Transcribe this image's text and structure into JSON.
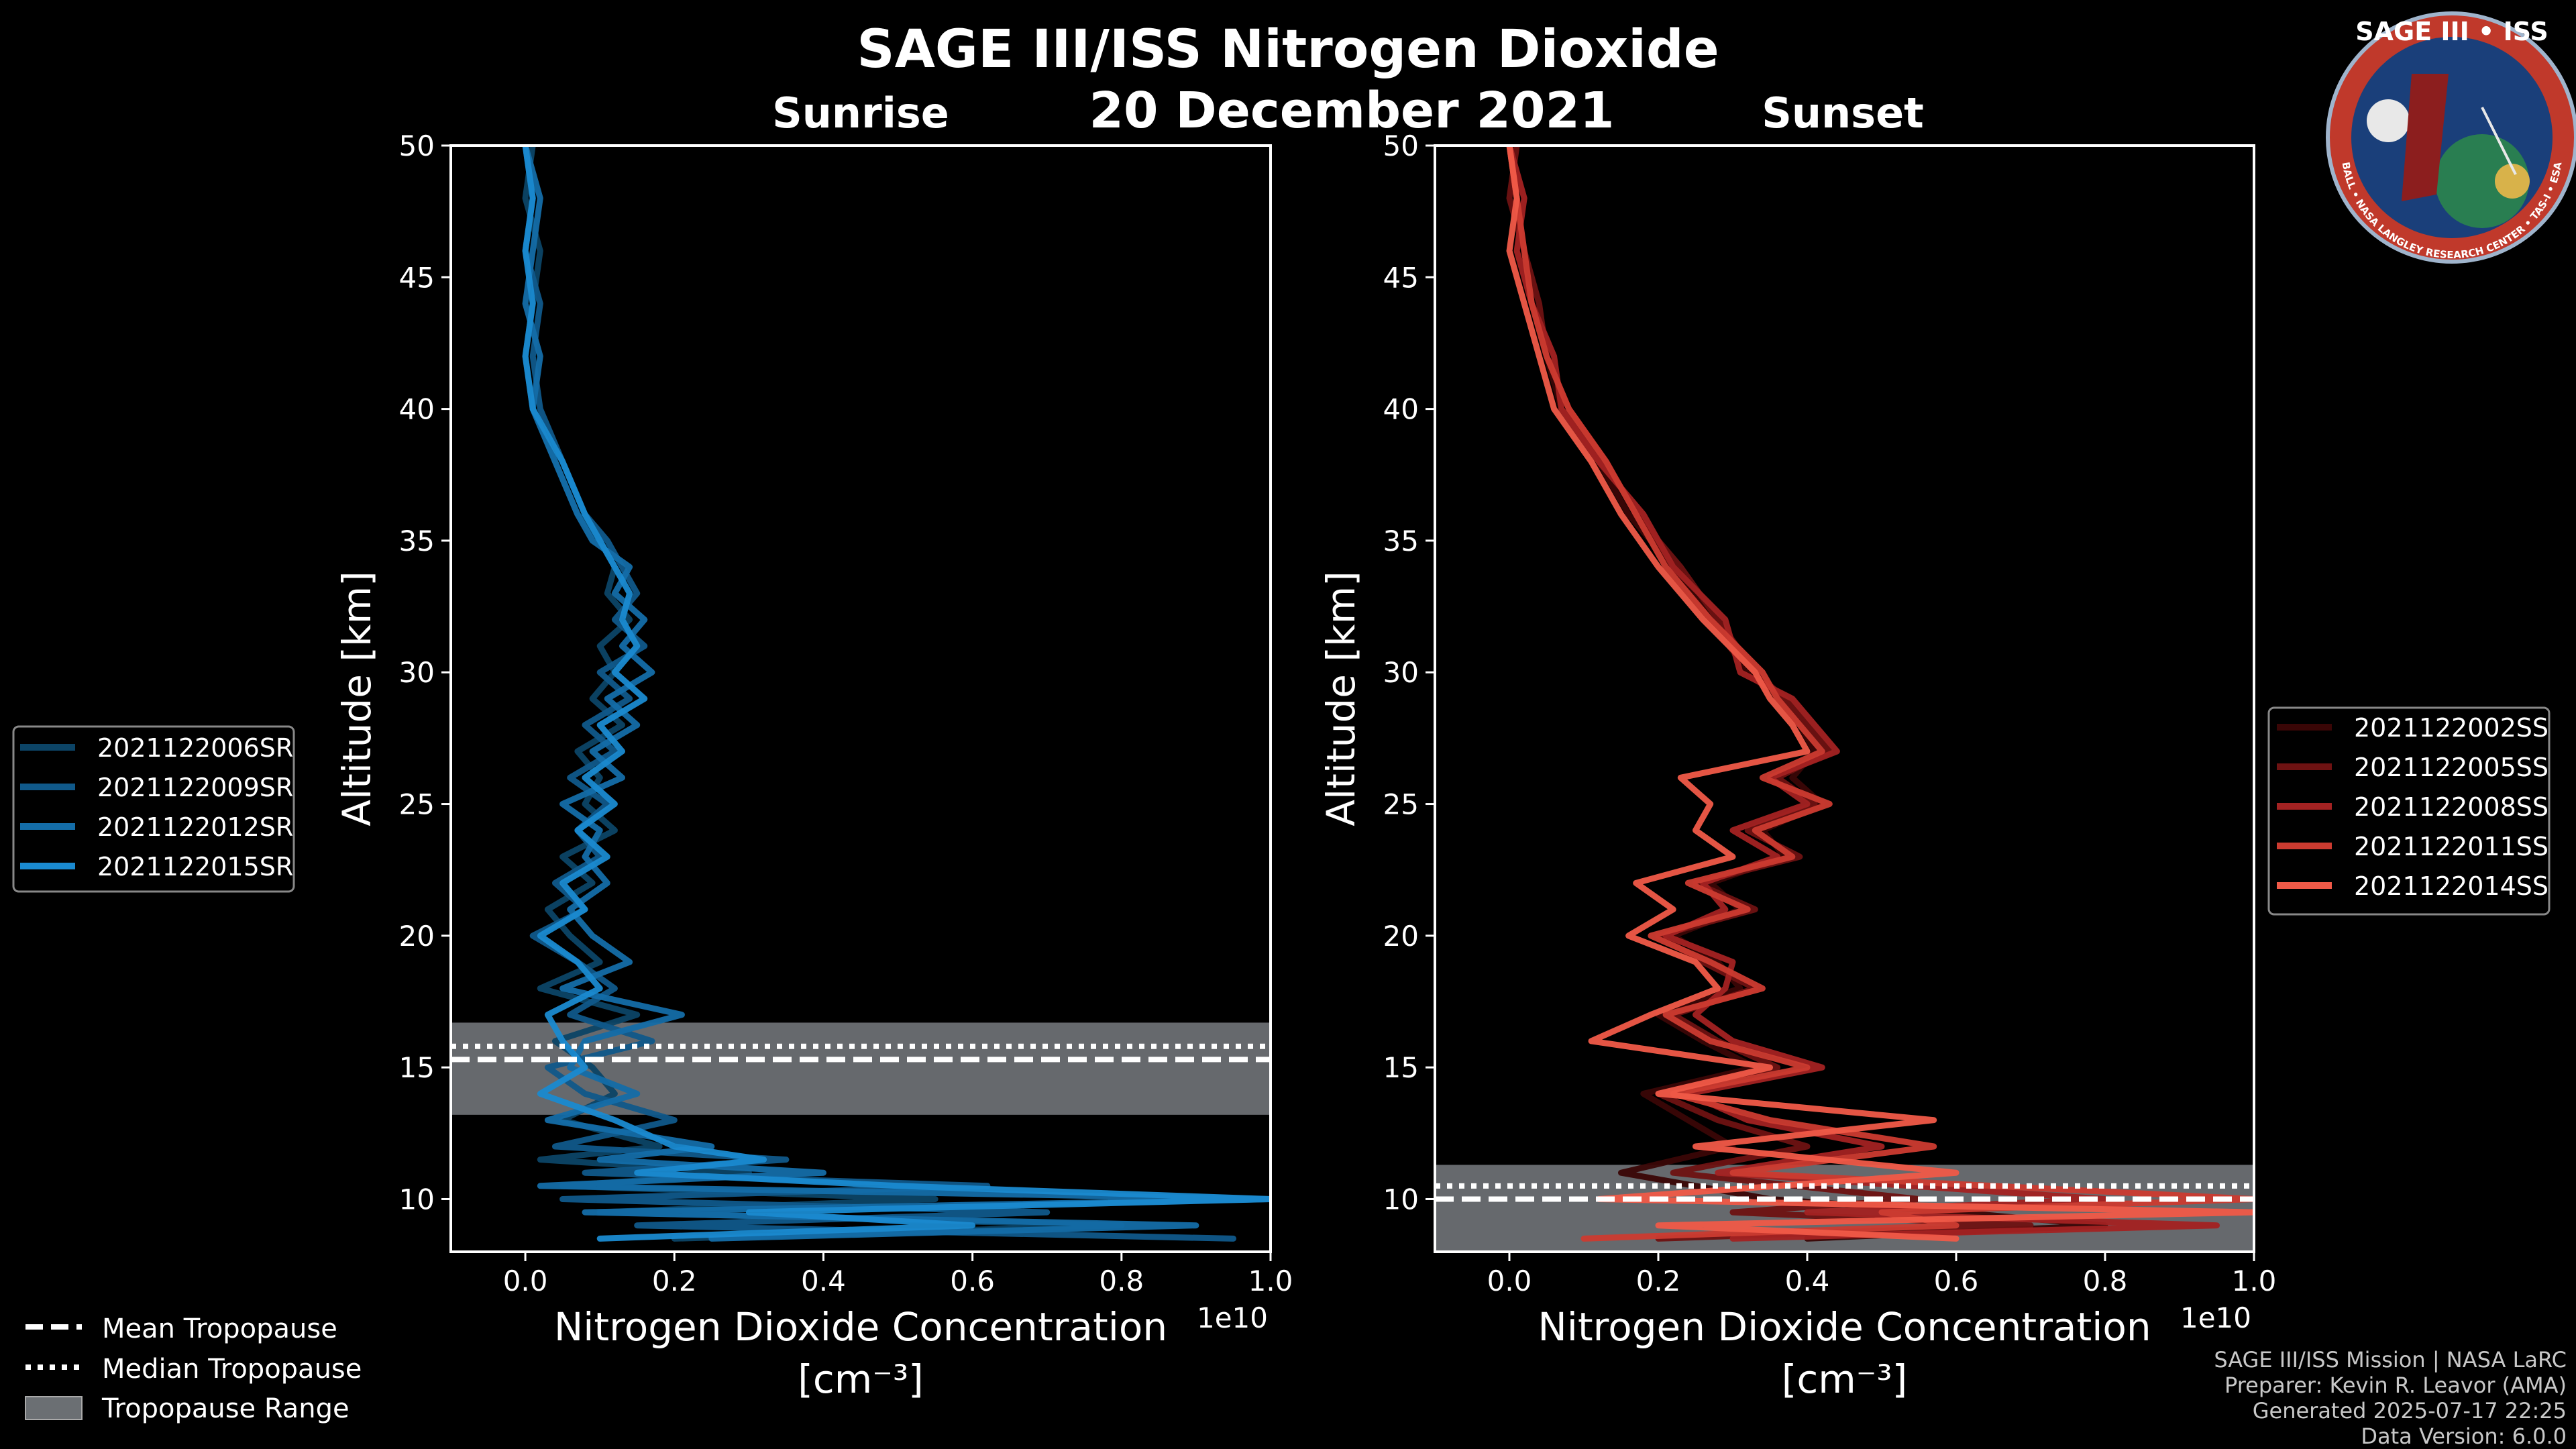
{
  "title": "SAGE III/ISS Nitrogen Dioxide",
  "date": "20 December 2021",
  "logo": {
    "text": "SAGE III • ISS",
    "ring_text": "BALL • NASA LANGLEY RESEARCH CENTER • TAS-I • ESA",
    "colors": {
      "ring": "#c0392b",
      "inner": "#1a3f7a",
      "gold": "#d8b24a"
    }
  },
  "credits": {
    "line1": "SAGE III/ISS Mission | NASA LaRC",
    "line2": "Preparer: Kevin R. Leavor (AMA)",
    "line3": "Generated 2025-07-17 22:25",
    "line4": "Data Version: 6.0.0"
  },
  "tropo_legend": {
    "mean": "Mean Tropopause",
    "median": "Median Tropopause",
    "range": "Tropopause Range"
  },
  "chart_data": [
    {
      "type": "line",
      "panel": "left",
      "title": "Sunrise",
      "xlabel": "Nitrogen Dioxide Concentration",
      "xunit": "[cm⁻³]",
      "ylabel": "Altitude [km]",
      "x_offset_label": "1e10",
      "xlim": [
        -0.1,
        1.0
      ],
      "ylim": [
        8,
        50
      ],
      "xticks": [
        0.0,
        0.2,
        0.4,
        0.6,
        0.8,
        1.0
      ],
      "xtick_labels": [
        "0.0",
        "0.2",
        "0.4",
        "0.6",
        "0.8",
        "1.0"
      ],
      "yticks": [
        10,
        15,
        20,
        25,
        30,
        35,
        40,
        45,
        50
      ],
      "ytick_labels": [
        "10",
        "15",
        "20",
        "25",
        "30",
        "35",
        "40",
        "45",
        "50"
      ],
      "tropopause": {
        "mean": 15.3,
        "median": 15.8,
        "range": [
          13.2,
          16.7
        ]
      },
      "legend_position": "center-left outside",
      "series": [
        {
          "name": "2021122006SR",
          "color": "#0c4466",
          "altitude": [
            50,
            48,
            46,
            44,
            42,
            40,
            38,
            36,
            35,
            34,
            33,
            32,
            31,
            30,
            29,
            28,
            27,
            26,
            25,
            24,
            23,
            22,
            21,
            20,
            19,
            18,
            17,
            16,
            15,
            14,
            13,
            12,
            11.5,
            11,
            10.5,
            10,
            9.5,
            9,
            8.5
          ],
          "values": [
            0.01,
            0.0,
            0.02,
            0.01,
            0.0,
            0.01,
            0.04,
            0.07,
            0.1,
            0.12,
            0.11,
            0.14,
            0.1,
            0.12,
            0.09,
            0.13,
            0.07,
            0.1,
            0.08,
            0.12,
            0.05,
            0.09,
            0.03,
            0.06,
            0.1,
            0.02,
            0.15,
            0.04,
            0.09,
            0.12,
            0.05,
            0.18,
            0.02,
            0.3,
            0.05,
            0.55,
            0.1,
            0.8,
            0.2
          ]
        },
        {
          "name": "2021122009SR",
          "color": "#10598a",
          "altitude": [
            50,
            48,
            46,
            44,
            42,
            40,
            38,
            36,
            35,
            34,
            33,
            32,
            31,
            30,
            29,
            28,
            27,
            26,
            25,
            24,
            23,
            22,
            21,
            20,
            19,
            18,
            17,
            16,
            15,
            14,
            13,
            12,
            11.5,
            11,
            10.5,
            10,
            9.5,
            9,
            8.5
          ],
          "values": [
            0.0,
            0.01,
            0.0,
            0.02,
            0.01,
            0.02,
            0.05,
            0.08,
            0.11,
            0.13,
            0.15,
            0.12,
            0.16,
            0.1,
            0.14,
            0.08,
            0.12,
            0.06,
            0.11,
            0.07,
            0.1,
            0.04,
            0.08,
            0.01,
            0.07,
            0.12,
            0.06,
            0.17,
            0.03,
            0.08,
            0.2,
            0.04,
            0.35,
            0.08,
            0.62,
            0.05,
            0.7,
            0.15,
            0.95
          ]
        },
        {
          "name": "2021122012SR",
          "color": "#146da8",
          "altitude": [
            50,
            48,
            46,
            44,
            42,
            40,
            38,
            36,
            35,
            34,
            33,
            32,
            31,
            30,
            29,
            28,
            27,
            26,
            25,
            24,
            23,
            22,
            21,
            20,
            19,
            18,
            17,
            16,
            15,
            14,
            13,
            12,
            11.5,
            11,
            10.5,
            10,
            9.5,
            9,
            8.5
          ],
          "values": [
            0.0,
            0.02,
            0.01,
            0.0,
            0.02,
            0.01,
            0.04,
            0.07,
            0.09,
            0.14,
            0.12,
            0.16,
            0.13,
            0.17,
            0.11,
            0.15,
            0.09,
            0.13,
            0.05,
            0.1,
            0.08,
            0.11,
            0.06,
            0.09,
            0.14,
            0.05,
            0.21,
            0.08,
            0.06,
            0.15,
            0.03,
            0.25,
            0.1,
            0.4,
            0.02,
            1.0,
            0.08,
            0.9,
            0.25
          ]
        },
        {
          "name": "2021122015SR",
          "color": "#1a8ad0",
          "altitude": [
            50,
            48,
            46,
            44,
            42,
            40,
            38,
            36,
            35,
            34,
            33,
            32,
            31,
            30,
            29,
            28,
            27,
            26,
            25,
            24,
            23,
            22,
            21,
            20,
            19,
            18,
            17,
            16,
            15,
            14,
            13,
            12,
            11.5,
            11,
            10.5,
            10,
            9.5,
            9,
            8.5
          ],
          "values": [
            0.0,
            0.01,
            0.0,
            0.01,
            0.0,
            0.01,
            0.05,
            0.08,
            0.1,
            0.12,
            0.14,
            0.13,
            0.15,
            0.12,
            0.16,
            0.1,
            0.13,
            0.08,
            0.12,
            0.07,
            0.11,
            0.05,
            0.08,
            0.02,
            0.07,
            0.1,
            0.03,
            0.05,
            0.08,
            0.02,
            0.12,
            0.2,
            0.32,
            0.15,
            0.5,
            1.0,
            0.3,
            0.6,
            0.1
          ]
        }
      ]
    },
    {
      "type": "line",
      "panel": "right",
      "title": "Sunset",
      "xlabel": "Nitrogen Dioxide Concentration",
      "xunit": "[cm⁻³]",
      "ylabel": "Altitude [km]",
      "x_offset_label": "1e10",
      "xlim": [
        -0.1,
        1.0
      ],
      "ylim": [
        8,
        50
      ],
      "xticks": [
        0.0,
        0.2,
        0.4,
        0.6,
        0.8,
        1.0
      ],
      "xtick_labels": [
        "0.0",
        "0.2",
        "0.4",
        "0.6",
        "0.8",
        "1.0"
      ],
      "yticks": [
        10,
        15,
        20,
        25,
        30,
        35,
        40,
        45,
        50
      ],
      "ytick_labels": [
        "10",
        "15",
        "20",
        "25",
        "30",
        "35",
        "40",
        "45",
        "50"
      ],
      "tropopause": {
        "mean": 10.0,
        "median": 10.5,
        "range": [
          8.0,
          11.3
        ]
      },
      "legend_position": "center-right outside",
      "series": [
        {
          "name": "2021122002SS",
          "color": "#3a0606",
          "altitude": [
            50,
            48,
            46,
            44,
            42,
            40,
            38,
            36,
            34,
            32,
            30,
            29,
            28,
            27,
            26,
            25,
            24,
            23,
            22,
            21,
            20,
            19,
            18,
            17,
            16,
            15,
            14,
            13,
            12,
            11,
            10,
            9.5,
            9,
            8.5
          ],
          "values": [
            0.0,
            0.01,
            0.02,
            0.03,
            0.05,
            0.07,
            0.12,
            0.16,
            0.22,
            0.27,
            0.32,
            0.36,
            0.39,
            0.41,
            0.38,
            0.42,
            0.34,
            0.37,
            0.27,
            0.31,
            0.22,
            0.28,
            0.31,
            0.2,
            0.26,
            0.33,
            0.18,
            0.24,
            0.3,
            0.15,
            0.35,
            0.6,
            0.8,
            0.4
          ]
        },
        {
          "name": "2021122005SS",
          "color": "#6e1212",
          "altitude": [
            50,
            48,
            46,
            44,
            42,
            40,
            38,
            36,
            34,
            32,
            30,
            29,
            28,
            27,
            26,
            25,
            24,
            23,
            22,
            21,
            20,
            19,
            18,
            17,
            16,
            15,
            14,
            13,
            12,
            11,
            10,
            9.5,
            9,
            8.5
          ],
          "values": [
            0.01,
            0.0,
            0.02,
            0.04,
            0.05,
            0.08,
            0.13,
            0.17,
            0.23,
            0.28,
            0.33,
            0.37,
            0.4,
            0.43,
            0.36,
            0.41,
            0.32,
            0.39,
            0.25,
            0.33,
            0.2,
            0.26,
            0.33,
            0.22,
            0.28,
            0.36,
            0.2,
            0.28,
            0.4,
            0.22,
            0.55,
            0.3,
            0.7,
            0.2
          ]
        },
        {
          "name": "2021122008SS",
          "color": "#a32222",
          "altitude": [
            50,
            48,
            46,
            44,
            42,
            40,
            38,
            36,
            34,
            32,
            30,
            29,
            28,
            27,
            26,
            25,
            24,
            23,
            22,
            21,
            20,
            19,
            18,
            17,
            16,
            15,
            14,
            13,
            12,
            11,
            10,
            9.5,
            9,
            8.5
          ],
          "values": [
            0.0,
            0.02,
            0.01,
            0.03,
            0.06,
            0.07,
            0.12,
            0.18,
            0.22,
            0.29,
            0.31,
            0.38,
            0.41,
            0.44,
            0.35,
            0.4,
            0.3,
            0.36,
            0.26,
            0.29,
            0.21,
            0.3,
            0.29,
            0.25,
            0.3,
            0.42,
            0.24,
            0.32,
            0.5,
            0.28,
            0.8,
            0.4,
            0.95,
            0.3
          ]
        },
        {
          "name": "2021122011SS",
          "color": "#cc3b30",
          "altitude": [
            50,
            48,
            46,
            44,
            42,
            40,
            38,
            36,
            34,
            32,
            30,
            29,
            28,
            27,
            26,
            25,
            24,
            23,
            22,
            21,
            20,
            19,
            18,
            17,
            16,
            15,
            14,
            13,
            12,
            11,
            10,
            9.5,
            9,
            8.5
          ],
          "values": [
            0.0,
            0.01,
            0.02,
            0.03,
            0.05,
            0.08,
            0.13,
            0.17,
            0.21,
            0.27,
            0.34,
            0.36,
            0.39,
            0.42,
            0.34,
            0.43,
            0.33,
            0.38,
            0.24,
            0.32,
            0.19,
            0.27,
            0.34,
            0.21,
            0.27,
            0.4,
            0.22,
            0.35,
            0.57,
            0.3,
            1.0,
            0.5,
            0.6,
            0.1
          ]
        },
        {
          "name": "2021122014SS",
          "color": "#f05a48",
          "altitude": [
            50,
            48,
            46,
            44,
            42,
            40,
            38,
            36,
            34,
            32,
            30,
            29,
            28,
            27,
            26,
            25,
            24,
            23,
            22,
            21,
            20,
            19,
            18,
            17,
            16,
            15,
            14,
            13,
            12,
            11,
            10,
            9.5,
            9,
            8.5
          ],
          "values": [
            0.0,
            0.01,
            0.0,
            0.02,
            0.04,
            0.06,
            0.11,
            0.15,
            0.2,
            0.26,
            0.33,
            0.35,
            0.38,
            0.4,
            0.23,
            0.27,
            0.25,
            0.3,
            0.17,
            0.22,
            0.16,
            0.25,
            0.28,
            0.19,
            0.11,
            0.35,
            0.2,
            0.57,
            0.25,
            0.6,
            0.12,
            1.0,
            0.2,
            0.6
          ]
        }
      ]
    }
  ]
}
